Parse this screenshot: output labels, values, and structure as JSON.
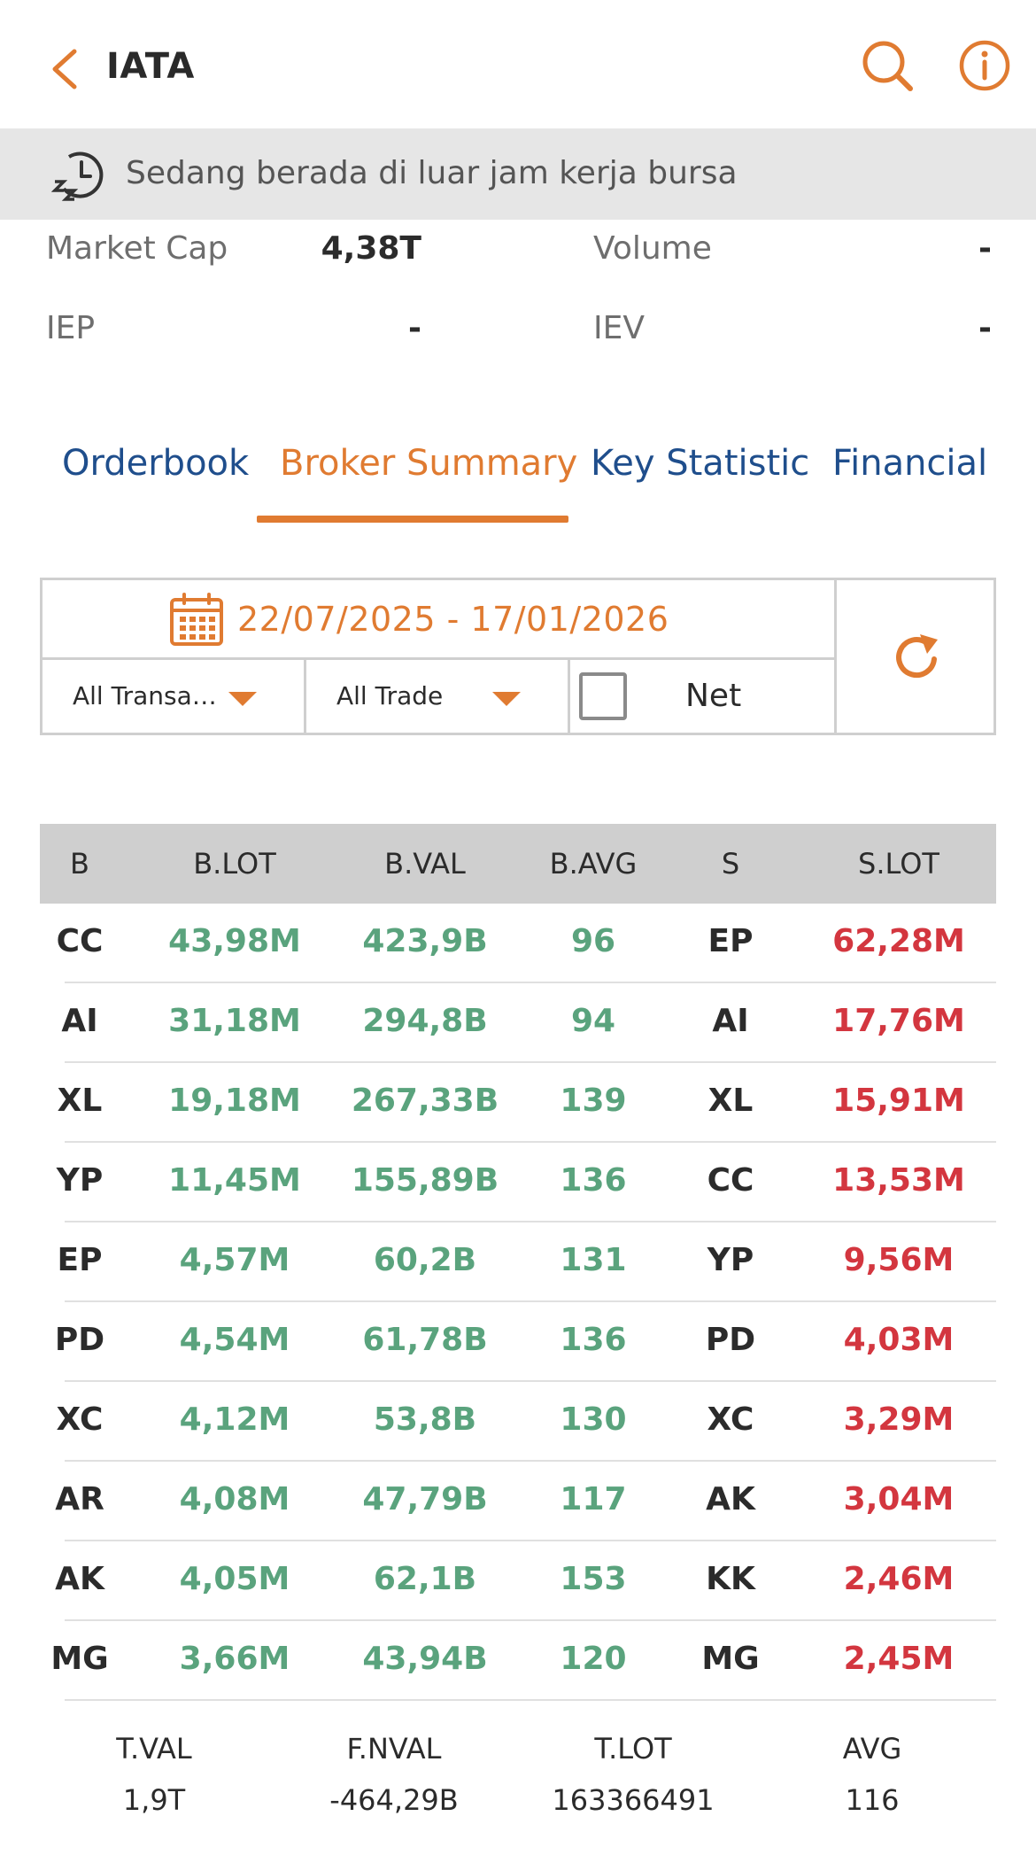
{
  "header": {
    "title": "IATA",
    "icons": [
      "back-icon",
      "search-icon",
      "info-icon"
    ]
  },
  "banner": {
    "text": "Sedang berada di luar jam kerja bursa",
    "icon": "sleep-clock-icon"
  },
  "stats": {
    "market_cap_label": "Market Cap",
    "market_cap_value": "4,38T",
    "volume_label": "Volume",
    "volume_value": "-",
    "iep_label": "IEP",
    "iep_value": "-",
    "iev_label": "IEV",
    "iev_value": "-"
  },
  "tabs": [
    {
      "label": "Orderbook",
      "active": false
    },
    {
      "label": "Broker Summary",
      "active": true
    },
    {
      "label": "Key Statistic",
      "active": false
    },
    {
      "label": "Financial",
      "active": false
    }
  ],
  "filters": {
    "date_range": "22/07/2025 - 17/01/2026",
    "transaction_type": "All Transa…",
    "trade_type": "All Trade",
    "net_label": "Net",
    "net_checked": false
  },
  "table": {
    "headers": [
      "B",
      "B.LOT",
      "B.VAL",
      "B.AVG",
      "S",
      "S.LOT"
    ],
    "rows": [
      [
        "CC",
        "43,98M",
        "423,9B",
        "96",
        "EP",
        "62,28M"
      ],
      [
        "AI",
        "31,18M",
        "294,8B",
        "94",
        "AI",
        "17,76M"
      ],
      [
        "XL",
        "19,18M",
        "267,33B",
        "139",
        "XL",
        "15,91M"
      ],
      [
        "YP",
        "11,45M",
        "155,89B",
        "136",
        "CC",
        "13,53M"
      ],
      [
        "EP",
        "4,57M",
        "60,2B",
        "131",
        "YP",
        "9,56M"
      ],
      [
        "PD",
        "4,54M",
        "61,78B",
        "136",
        "PD",
        "4,03M"
      ],
      [
        "XC",
        "4,12M",
        "53,8B",
        "130",
        "XC",
        "3,29M"
      ],
      [
        "AR",
        "4,08M",
        "47,79B",
        "117",
        "AK",
        "3,04M"
      ],
      [
        "AK",
        "4,05M",
        "62,1B",
        "153",
        "KK",
        "2,46M"
      ],
      [
        "MG",
        "3,66M",
        "43,94B",
        "120",
        "MG",
        "2,45M"
      ]
    ]
  },
  "totals": [
    {
      "label": "T.VAL",
      "value": "1,9T"
    },
    {
      "label": "F.NVAL",
      "value": "-464,29B"
    },
    {
      "label": "T.LOT",
      "value": "163366491"
    },
    {
      "label": "AVG",
      "value": "116"
    }
  ],
  "colors": {
    "accent": "#e07b31",
    "tab_inactive": "#1f4e8c",
    "buy": "#5aa37d",
    "sell": "#d3363f"
  }
}
